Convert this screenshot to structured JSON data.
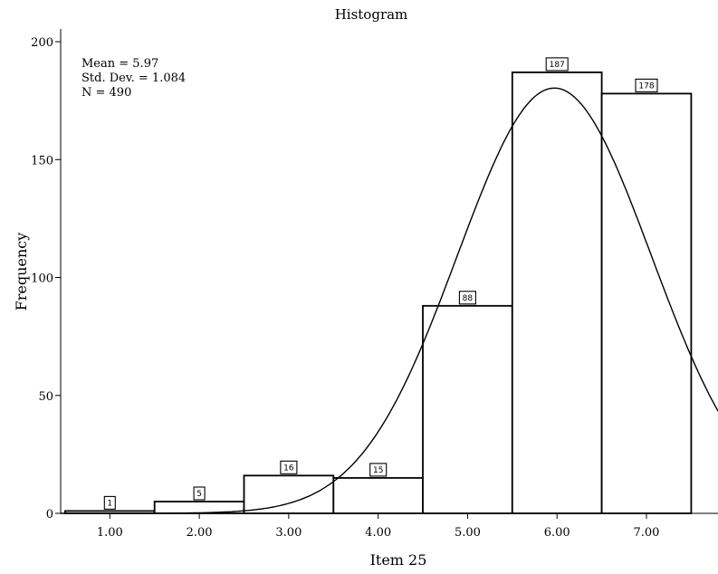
{
  "chart_data": {
    "type": "bar",
    "title": "Histogram",
    "xlabel": "Item 25",
    "ylabel": "Frequency",
    "categories": [
      "1.00",
      "2.00",
      "3.00",
      "4.00",
      "5.00",
      "6.00",
      "7.00"
    ],
    "x": [
      1,
      2,
      3,
      4,
      5,
      6,
      7
    ],
    "values": [
      1,
      5,
      16,
      15,
      88,
      187,
      178
    ],
    "data_labels": [
      "1",
      "5",
      "16",
      "15",
      "88",
      "187",
      "178"
    ],
    "bin_width": 1,
    "xlim": [
      0.45,
      7.8
    ],
    "ylim": [
      0,
      210
    ],
    "y_ticks": [
      0,
      50,
      100,
      150,
      200
    ],
    "y_tick_labels": [
      "0",
      "50",
      "100",
      "150",
      "200"
    ],
    "grid": false,
    "normal_curve": {
      "mean": 5.97,
      "std": 1.084,
      "n": 490
    },
    "stats": {
      "mean": "Mean = 5.97",
      "std": "Std. Dev. = 1.084",
      "n": "N = 490"
    }
  }
}
